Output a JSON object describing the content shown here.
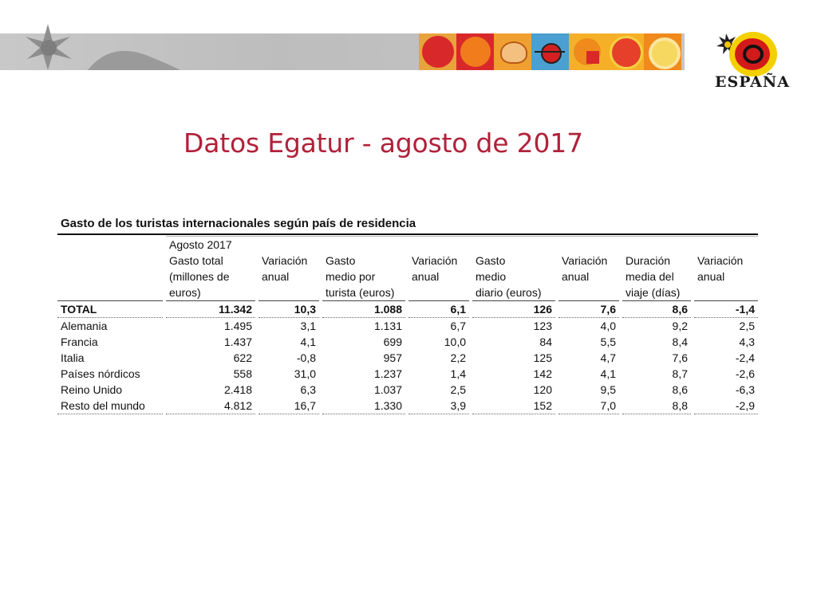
{
  "title": "Datos Egatur - agosto de 2017",
  "logo": {
    "text": "ESPAÑA",
    "icon": "espana-sun-logo"
  },
  "banner": {
    "tiles": [
      "red-disc-tile",
      "orange-disc-tile",
      "shell-tile",
      "beetle-tile",
      "square-sun-tile",
      "red-sun-tile",
      "spiral-sun-tile"
    ]
  },
  "table": {
    "caption": "Gasto de los turistas internacionales según país de residencia",
    "period": "Agosto 2017",
    "headers": {
      "gasto_total": [
        "Gasto total",
        "(millones de",
        "euros)"
      ],
      "var1": [
        "Variación",
        "anual",
        ""
      ],
      "gasto_medio": [
        "Gasto",
        "medio por",
        "turista (euros)"
      ],
      "var2": [
        "Variación",
        "anual",
        ""
      ],
      "gasto_diario": [
        "Gasto",
        "medio",
        "diario (euros)"
      ],
      "var3": [
        "Variación",
        "anual",
        ""
      ],
      "duracion": [
        "Duración",
        "media del",
        "viaje (días)"
      ],
      "var4": [
        "Variación",
        "anual",
        ""
      ]
    },
    "rows": [
      {
        "country": "TOTAL",
        "v": [
          "11.342",
          "10,3",
          "1.088",
          "6,1",
          "126",
          "7,6",
          "8,6",
          "-1,4"
        ]
      },
      {
        "country": "Alemania",
        "v": [
          "1.495",
          "3,1",
          "1.131",
          "6,7",
          "123",
          "4,0",
          "9,2",
          "2,5"
        ]
      },
      {
        "country": "Francia",
        "v": [
          "1.437",
          "4,1",
          "699",
          "10,0",
          "84",
          "5,5",
          "8,4",
          "4,3"
        ]
      },
      {
        "country": "Italia",
        "v": [
          "622",
          "-0,8",
          "957",
          "2,2",
          "125",
          "4,7",
          "7,6",
          "-2,4"
        ]
      },
      {
        "country": "Países nórdicos",
        "v": [
          "558",
          "31,0",
          "1.237",
          "1,4",
          "142",
          "4,1",
          "8,7",
          "-2,6"
        ]
      },
      {
        "country": "Reino Unido",
        "v": [
          "2.418",
          "6,3",
          "1.037",
          "2,5",
          "120",
          "9,5",
          "8,6",
          "-6,3"
        ]
      },
      {
        "country": "Resto del mundo",
        "v": [
          "4.812",
          "16,7",
          "1.330",
          "3,9",
          "152",
          "7,0",
          "8,8",
          "-2,9"
        ]
      }
    ]
  }
}
